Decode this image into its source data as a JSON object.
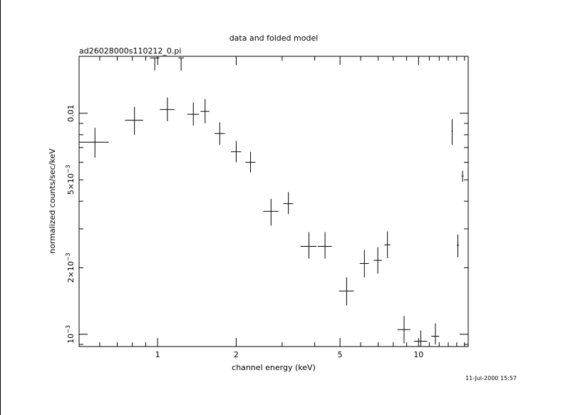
{
  "chart_data": {
    "type": "scatter",
    "title": "data and folded model",
    "subtitle": "ad26028000s110212_0.pi",
    "xlabel": "channel energy (keV)",
    "ylabel": "normalized counts/sec/keV",
    "xscale": "log",
    "yscale": "log",
    "xlim": [
      0.5,
      15.5
    ],
    "ylim": [
      0.00088,
      0.0181
    ],
    "x_ticks": [
      {
        "value": 1,
        "label": "1"
      },
      {
        "value": 2,
        "label": "2"
      },
      {
        "value": 5,
        "label": "5"
      },
      {
        "value": 10,
        "label": "10"
      }
    ],
    "y_ticks": [
      {
        "value": 0.001,
        "label_base": "10",
        "label_sup": "−3"
      },
      {
        "value": 0.002,
        "label_base": "2×10",
        "label_sup": "−3"
      },
      {
        "value": 0.005,
        "label_base": "5×10",
        "label_sup": "−3"
      },
      {
        "value": 0.01,
        "label_base": "0.01",
        "label_sup": ""
      }
    ],
    "grid": false,
    "series": [
      {
        "style": "crosses with x and y error bars",
        "points": [
          {
            "x": 0.575,
            "xerr": [
              0.075,
              0.075
            ],
            "y": 0.0074,
            "yerr": [
              0.0011,
              0.0012
            ]
          },
          {
            "x": 0.815,
            "xerr": [
              0.065,
              0.065
            ],
            "y": 0.0093,
            "yerr": [
              0.0013,
              0.0014
            ]
          },
          {
            "x": 0.975,
            "xerr": [
              0.04,
              0.04
            ],
            "y": 0.0178,
            "yerr": [
              0.0022,
              0.0
            ]
          },
          {
            "x": 1.09,
            "xerr": [
              0.07,
              0.07
            ],
            "y": 0.0104,
            "yerr": [
              0.0012,
              0.0014
            ]
          },
          {
            "x": 1.23,
            "xerr": [
              0.03,
              0.03
            ],
            "y": 0.0178,
            "yerr": [
              0.0022,
              0.0
            ]
          },
          {
            "x": 1.37,
            "xerr": [
              0.07,
              0.07
            ],
            "y": 0.0099,
            "yerr": [
              0.0011,
              0.0013
            ]
          },
          {
            "x": 1.52,
            "xerr": [
              0.06,
              0.06
            ],
            "y": 0.0102,
            "yerr": [
              0.0012,
              0.0014
            ]
          },
          {
            "x": 1.73,
            "xerr": [
              0.08,
              0.08
            ],
            "y": 0.0081,
            "yerr": [
              0.0009,
              0.001
            ]
          },
          {
            "x": 2.0,
            "xerr": [
              0.09,
              0.09
            ],
            "y": 0.0067,
            "yerr": [
              0.0007,
              0.0008
            ]
          },
          {
            "x": 2.27,
            "xerr": [
              0.1,
              0.1
            ],
            "y": 0.006,
            "yerr": [
              0.0006,
              0.0007
            ]
          },
          {
            "x": 2.72,
            "xerr": [
              0.18,
              0.18
            ],
            "y": 0.0036,
            "yerr": [
              0.0005,
              0.0005
            ]
          },
          {
            "x": 3.17,
            "xerr": [
              0.14,
              0.14
            ],
            "y": 0.0039,
            "yerr": [
              0.0004,
              0.0005
            ]
          },
          {
            "x": 3.8,
            "xerr": [
              0.27,
              0.27
            ],
            "y": 0.0025,
            "yerr": [
              0.0003,
              0.0004
            ]
          },
          {
            "x": 4.38,
            "xerr": [
              0.27,
              0.27
            ],
            "y": 0.0025,
            "yerr": [
              0.0003,
              0.0004
            ]
          },
          {
            "x": 5.3,
            "xerr": [
              0.35,
              0.35
            ],
            "y": 0.00157,
            "yerr": [
              0.00022,
              0.00024
            ]
          },
          {
            "x": 6.2,
            "xerr": [
              0.25,
              0.25
            ],
            "y": 0.00209,
            "yerr": [
              0.00028,
              0.00032
            ]
          },
          {
            "x": 6.98,
            "xerr": [
              0.25,
              0.25
            ],
            "y": 0.00216,
            "yerr": [
              0.00028,
              0.00032
            ]
          },
          {
            "x": 7.6,
            "xerr": [
              0.2,
              0.2
            ],
            "y": 0.00254,
            "yerr": [
              0.00033,
              0.00038
            ]
          },
          {
            "x": 8.8,
            "xerr": [
              0.5,
              0.5
            ],
            "y": 0.00105,
            "yerr": [
              0.00014,
              0.00016
            ]
          },
          {
            "x": 10.2,
            "xerr": [
              0.6,
              0.6
            ],
            "y": 0.00093,
            "yerr": [
              5e-05,
              0.00011
            ]
          },
          {
            "x": 11.6,
            "xerr": [
              0.4,
              0.4
            ],
            "y": 0.00098,
            "yerr": [
              8e-05,
              0.00014
            ]
          },
          {
            "x": 13.45,
            "xerr": [
              0.08,
              0.08
            ],
            "y": 0.0083,
            "yerr": [
              0.0011,
              0.0011
            ]
          },
          {
            "x": 14.15,
            "xerr": [
              0.12,
              0.12
            ],
            "y": 0.00253,
            "yerr": [
              0.0003,
              0.0003
            ]
          },
          {
            "x": 14.75,
            "xerr": [
              0.12,
              0.12
            ],
            "y": 0.0052,
            "yerr": [
              0.0003,
              0.0003
            ]
          }
        ]
      }
    ]
  },
  "footer": {
    "timestamp": "11-Jul-2000 15:57"
  }
}
